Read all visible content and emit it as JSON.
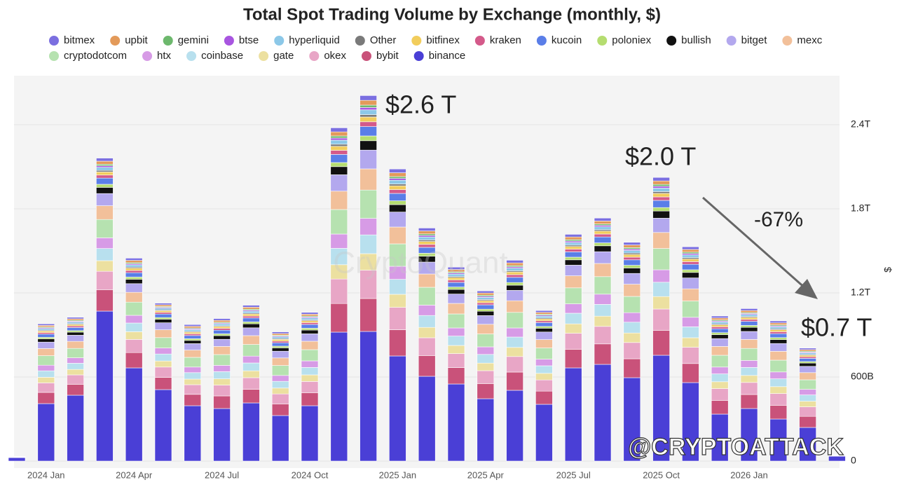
{
  "chart_data": {
    "type": "stacked-bar",
    "title": "Total Spot Trading Volume by Exchange (monthly, $)",
    "y_label": "$",
    "annotations": [
      "$2.6 T",
      "$2.0 T",
      "-67%",
      "$0.7 T"
    ],
    "watermarks": [
      "CryptoQuant",
      "@CRYPTOATTACK"
    ],
    "categories": [
      null,
      "2024 Jan",
      null,
      null,
      "2024 Apr",
      null,
      null,
      "2024 Jul",
      null,
      null,
      "2024 Oct",
      null,
      null,
      "2025 Jan",
      null,
      null,
      "2025 Apr",
      null,
      null,
      "2025 Jul",
      null,
      null,
      "2025 Oct",
      null,
      null,
      "2026 Jan",
      null,
      null,
      null
    ],
    "ylim": [
      0,
      2750
    ],
    "yticks": [
      0,
      {
        "value": 600,
        "label": "600B"
      },
      {
        "value": 1200,
        "label": "1.2T"
      },
      {
        "value": 1800,
        "label": "1.8T"
      },
      {
        "value": 2400,
        "label": "2.4T"
      }
    ],
    "grid": true,
    "series": [
      {
        "name": "bitmex",
        "color": "#7b6fe0",
        "values": [
          0,
          11,
          11,
          22,
          16,
          12,
          12,
          13,
          14,
          12,
          13,
          29,
          34,
          27,
          21,
          17,
          15,
          19,
          13,
          19,
          21,
          19,
          25,
          19,
          14,
          14,
          14,
          11,
          0
        ]
      },
      {
        "name": "upbit",
        "color": "#e39a5a",
        "values": [
          0,
          11,
          11,
          22,
          16,
          12,
          12,
          13,
          14,
          12,
          13,
          29,
          34,
          27,
          21,
          17,
          15,
          19,
          13,
          19,
          21,
          19,
          25,
          19,
          14,
          14,
          14,
          11,
          0
        ]
      },
      {
        "name": "gemini",
        "color": "#6db86d",
        "values": [
          0,
          6,
          6,
          11,
          8,
          6,
          6,
          6,
          7,
          6,
          7,
          15,
          17,
          13,
          11,
          8,
          8,
          9,
          7,
          10,
          10,
          10,
          13,
          10,
          7,
          7,
          7,
          6,
          0
        ]
      },
      {
        "name": "btse",
        "color": "#a855e0",
        "values": [
          0,
          6,
          6,
          11,
          8,
          6,
          6,
          6,
          7,
          6,
          7,
          15,
          17,
          13,
          11,
          8,
          8,
          9,
          7,
          10,
          10,
          10,
          13,
          10,
          7,
          7,
          7,
          6,
          0
        ]
      },
      {
        "name": "hyperliquid",
        "color": "#8cc8e8",
        "values": [
          0,
          11,
          11,
          22,
          16,
          12,
          12,
          13,
          14,
          12,
          13,
          29,
          34,
          27,
          21,
          17,
          15,
          19,
          13,
          19,
          21,
          19,
          25,
          19,
          14,
          14,
          14,
          11,
          0
        ]
      },
      {
        "name": "Other",
        "color": "#7a7a7a",
        "values": [
          0,
          6,
          6,
          11,
          8,
          6,
          6,
          6,
          7,
          6,
          7,
          15,
          17,
          13,
          11,
          8,
          8,
          9,
          7,
          10,
          10,
          10,
          13,
          10,
          7,
          7,
          7,
          6,
          0
        ]
      },
      {
        "name": "bitfinex",
        "color": "#f2cd5c",
        "values": [
          0,
          11,
          11,
          22,
          16,
          12,
          12,
          13,
          14,
          12,
          13,
          29,
          34,
          27,
          21,
          17,
          15,
          19,
          13,
          19,
          21,
          19,
          25,
          19,
          14,
          14,
          14,
          11,
          0
        ]
      },
      {
        "name": "kraken",
        "color": "#d45a8a",
        "values": [
          0,
          11,
          11,
          22,
          16,
          12,
          12,
          13,
          14,
          12,
          13,
          29,
          34,
          27,
          21,
          17,
          15,
          19,
          13,
          19,
          21,
          19,
          25,
          19,
          14,
          14,
          14,
          11,
          0
        ]
      },
      {
        "name": "kucoin",
        "color": "#5a7ee8",
        "values": [
          0,
          23,
          22,
          44,
          31,
          25,
          23,
          26,
          28,
          24,
          27,
          58,
          67,
          53,
          42,
          33,
          31,
          37,
          27,
          38,
          42,
          39,
          51,
          39,
          28,
          29,
          28,
          23,
          1
        ]
      },
      {
        "name": "poloniex",
        "color": "#b5dd70",
        "values": [
          0,
          11,
          11,
          22,
          16,
          12,
          12,
          13,
          14,
          12,
          13,
          29,
          34,
          27,
          21,
          17,
          15,
          19,
          13,
          19,
          21,
          19,
          25,
          19,
          14,
          14,
          14,
          11,
          0
        ]
      },
      {
        "name": "bullish",
        "color": "#111111",
        "values": [
          0,
          23,
          22,
          44,
          31,
          25,
          23,
          26,
          28,
          24,
          27,
          58,
          67,
          53,
          42,
          33,
          31,
          37,
          27,
          38,
          42,
          39,
          51,
          39,
          28,
          29,
          28,
          23,
          1
        ]
      },
      {
        "name": "bitget",
        "color": "#b3a8ee",
        "values": [
          1,
          46,
          44,
          87,
          62,
          50,
          46,
          51,
          56,
          48,
          53,
          117,
          134,
          107,
          85,
          67,
          62,
          74,
          54,
          76,
          84,
          77,
          102,
          78,
          56,
          57,
          56,
          45,
          1
        ]
      },
      {
        "name": "mexc",
        "color": "#f2c09a",
        "values": [
          1,
          51,
          50,
          98,
          70,
          56,
          52,
          58,
          63,
          54,
          60,
          131,
          151,
          120,
          95,
          75,
          69,
          83,
          60,
          86,
          94,
          87,
          114,
          87,
          63,
          64,
          63,
          51,
          1
        ]
      },
      {
        "name": "cryptodotcom",
        "color": "#b6e2b0",
        "values": [
          1,
          68,
          67,
          131,
          94,
          74,
          69,
          77,
          83,
          71,
          80,
          175,
          202,
          160,
          127,
          100,
          92,
          111,
          80,
          114,
          125,
          116,
          152,
          116,
          84,
          86,
          84,
          68,
          2
        ]
      },
      {
        "name": "htx",
        "color": "#d79be6",
        "values": [
          1,
          40,
          39,
          76,
          55,
          43,
          40,
          45,
          49,
          42,
          47,
          102,
          118,
          93,
          74,
          58,
          54,
          65,
          47,
          67,
          73,
          68,
          89,
          68,
          49,
          50,
          49,
          40,
          1
        ]
      },
      {
        "name": "coinbase",
        "color": "#b8e0ee",
        "values": [
          1,
          46,
          44,
          87,
          62,
          50,
          46,
          51,
          56,
          48,
          53,
          117,
          134,
          107,
          85,
          67,
          62,
          74,
          54,
          76,
          84,
          77,
          102,
          78,
          56,
          57,
          56,
          45,
          1
        ]
      },
      {
        "name": "gate",
        "color": "#ece0a0",
        "values": [
          1,
          40,
          39,
          76,
          55,
          43,
          40,
          45,
          49,
          42,
          47,
          102,
          118,
          93,
          74,
          58,
          54,
          65,
          47,
          67,
          73,
          68,
          89,
          68,
          49,
          50,
          49,
          40,
          1
        ]
      },
      {
        "name": "okex",
        "color": "#e8a6c6",
        "values": [
          1,
          68,
          67,
          131,
          94,
          74,
          69,
          77,
          83,
          71,
          80,
          175,
          202,
          160,
          127,
          100,
          92,
          111,
          80,
          114,
          125,
          116,
          152,
          116,
          84,
          86,
          84,
          68,
          2
        ]
      },
      {
        "name": "bybit",
        "color": "#c9527a",
        "values": [
          1,
          80,
          78,
          153,
          109,
          87,
          81,
          90,
          97,
          83,
          93,
          204,
          235,
          187,
          148,
          117,
          108,
          130,
          94,
          133,
          146,
          135,
          178,
          136,
          98,
          100,
          98,
          79,
          2
        ]
      },
      {
        "name": "binance",
        "color": "#4a3fd6",
        "values": [
          25,
          410,
          470,
          1070,
          665,
          510,
          395,
          375,
          415,
          325,
          395,
          920,
          925,
          750,
          605,
          550,
          445,
          505,
          405,
          665,
          690,
          595,
          755,
          560,
          335,
          375,
          300,
          240,
          35
        ]
      }
    ]
  }
}
